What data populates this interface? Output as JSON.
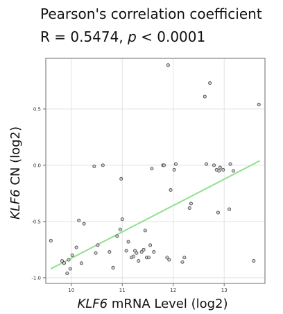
{
  "chart_data": {
    "type": "scatter",
    "title_line_1": "Pearson's correlation coefficient",
    "title_line_2_prefix": "R = 0.5474, ",
    "title_line_2_italic": "p",
    "title_line_2_suffix": " < 0.0001",
    "xlabel_italic": "KLF6",
    "xlabel_rest": " mRNA Level (log2)",
    "ylabel_italic": "KLF6",
    "ylabel_rest": " CN (log2)",
    "xlim": [
      9.5,
      13.8
    ],
    "ylim": [
      -1.05,
      0.95
    ],
    "xticks": [
      10,
      11,
      12,
      13
    ],
    "xtick_labels": [
      "10",
      "11",
      "12",
      "13"
    ],
    "yticks": [
      -1.0,
      -0.5,
      0.0,
      0.5
    ],
    "ytick_labels": [
      "-1.0",
      "-0.5",
      "0.0",
      "0.5"
    ],
    "grid": true,
    "trendline": {
      "x": [
        9.6,
        13.7
      ],
      "y": [
        -0.92,
        0.04
      ],
      "color": "#8fe08c"
    },
    "points": {
      "color_fill": "#cfcfcf",
      "color_edge": "#3c3c3c",
      "x": [
        9.6,
        9.82,
        9.86,
        9.92,
        9.95,
        9.98,
        10.02,
        10.1,
        10.15,
        10.2,
        10.25,
        10.45,
        10.48,
        10.52,
        10.62,
        10.75,
        10.82,
        10.9,
        10.96,
        10.98,
        11.0,
        11.08,
        11.12,
        11.18,
        11.22,
        11.25,
        11.28,
        11.32,
        11.38,
        11.42,
        11.45,
        11.48,
        11.52,
        11.55,
        11.58,
        11.62,
        11.8,
        11.82,
        11.88,
        11.9,
        11.92,
        11.95,
        12.02,
        12.05,
        12.18,
        12.22,
        12.32,
        12.35,
        12.62,
        12.65,
        12.72,
        12.8,
        12.85,
        12.88,
        12.9,
        12.92,
        12.98,
        13.1,
        13.12,
        13.18,
        13.58,
        13.68
      ],
      "y": [
        -0.67,
        -0.85,
        -0.87,
        -0.96,
        -0.84,
        -0.92,
        -0.8,
        -0.73,
        -0.49,
        -0.87,
        -0.52,
        -0.01,
        -0.78,
        -0.71,
        -0.0,
        -0.77,
        -0.91,
        -0.63,
        -0.57,
        -0.12,
        -0.48,
        -0.76,
        -0.68,
        -0.82,
        -0.81,
        -0.76,
        -0.78,
        -0.85,
        -0.77,
        -0.75,
        -0.58,
        -0.82,
        -0.82,
        -0.71,
        -0.03,
        -0.77,
        0.0,
        0.0,
        -0.82,
        0.89,
        -0.84,
        -0.22,
        -0.04,
        0.01,
        -0.86,
        -0.82,
        -0.38,
        -0.34,
        0.61,
        0.01,
        0.73,
        0.0,
        -0.04,
        -0.42,
        -0.05,
        -0.02,
        -0.04,
        -0.39,
        0.01,
        -0.05,
        -0.85,
        0.54
      ]
    }
  }
}
